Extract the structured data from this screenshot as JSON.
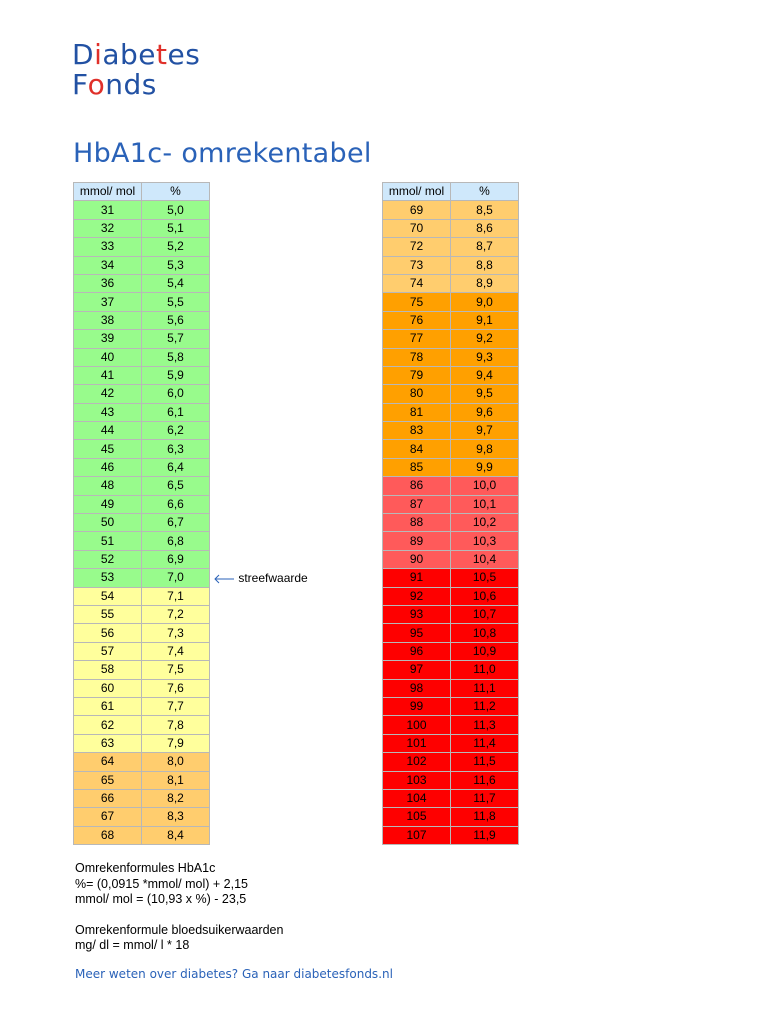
{
  "logo": {
    "line1": "Diabetes",
    "line2": "Fonds"
  },
  "title": "HbA1c- omrekentabel",
  "table": {
    "headers": [
      "mmol/ mol",
      "%"
    ],
    "left_rows": [
      {
        "mmol": "31",
        "pct": "5,0",
        "band": "g"
      },
      {
        "mmol": "32",
        "pct": "5,1",
        "band": "g"
      },
      {
        "mmol": "33",
        "pct": "5,2",
        "band": "g"
      },
      {
        "mmol": "34",
        "pct": "5,3",
        "band": "g"
      },
      {
        "mmol": "36",
        "pct": "5,4",
        "band": "g"
      },
      {
        "mmol": "37",
        "pct": "5,5",
        "band": "g"
      },
      {
        "mmol": "38",
        "pct": "5,6",
        "band": "g"
      },
      {
        "mmol": "39",
        "pct": "5,7",
        "band": "g"
      },
      {
        "mmol": "40",
        "pct": "5,8",
        "band": "g"
      },
      {
        "mmol": "41",
        "pct": "5,9",
        "band": "g"
      },
      {
        "mmol": "42",
        "pct": "6,0",
        "band": "g"
      },
      {
        "mmol": "43",
        "pct": "6,1",
        "band": "g"
      },
      {
        "mmol": "44",
        "pct": "6,2",
        "band": "g"
      },
      {
        "mmol": "45",
        "pct": "6,3",
        "band": "g"
      },
      {
        "mmol": "46",
        "pct": "6,4",
        "band": "g"
      },
      {
        "mmol": "48",
        "pct": "6,5",
        "band": "g"
      },
      {
        "mmol": "49",
        "pct": "6,6",
        "band": "g"
      },
      {
        "mmol": "50",
        "pct": "6,7",
        "band": "g"
      },
      {
        "mmol": "51",
        "pct": "6,8",
        "band": "g"
      },
      {
        "mmol": "52",
        "pct": "6,9",
        "band": "g"
      },
      {
        "mmol": "53",
        "pct": "7,0",
        "band": "g"
      },
      {
        "mmol": "54",
        "pct": "7,1",
        "band": "y"
      },
      {
        "mmol": "55",
        "pct": "7,2",
        "band": "y"
      },
      {
        "mmol": "56",
        "pct": "7,3",
        "band": "y"
      },
      {
        "mmol": "57",
        "pct": "7,4",
        "band": "y"
      },
      {
        "mmol": "58",
        "pct": "7,5",
        "band": "y"
      },
      {
        "mmol": "60",
        "pct": "7,6",
        "band": "y"
      },
      {
        "mmol": "61",
        "pct": "7,7",
        "band": "y"
      },
      {
        "mmol": "62",
        "pct": "7,8",
        "band": "y"
      },
      {
        "mmol": "63",
        "pct": "7,9",
        "band": "y"
      },
      {
        "mmol": "64",
        "pct": "8,0",
        "band": "o1"
      },
      {
        "mmol": "65",
        "pct": "8,1",
        "band": "o1"
      },
      {
        "mmol": "66",
        "pct": "8,2",
        "band": "o1"
      },
      {
        "mmol": "67",
        "pct": "8,3",
        "band": "o1"
      },
      {
        "mmol": "68",
        "pct": "8,4",
        "band": "o1"
      }
    ],
    "right_rows": [
      {
        "mmol": "69",
        "pct": "8,5",
        "band": "o1"
      },
      {
        "mmol": "70",
        "pct": "8,6",
        "band": "o1"
      },
      {
        "mmol": "72",
        "pct": "8,7",
        "band": "o1"
      },
      {
        "mmol": "73",
        "pct": "8,8",
        "band": "o1"
      },
      {
        "mmol": "74",
        "pct": "8,9",
        "band": "o1"
      },
      {
        "mmol": "75",
        "pct": "9,0",
        "band": "o2"
      },
      {
        "mmol": "76",
        "pct": "9,1",
        "band": "o2"
      },
      {
        "mmol": "77",
        "pct": "9,2",
        "band": "o2"
      },
      {
        "mmol": "78",
        "pct": "9,3",
        "band": "o2"
      },
      {
        "mmol": "79",
        "pct": "9,4",
        "band": "o2"
      },
      {
        "mmol": "80",
        "pct": "9,5",
        "band": "o2"
      },
      {
        "mmol": "81",
        "pct": "9,6",
        "band": "o2"
      },
      {
        "mmol": "83",
        "pct": "9,7",
        "band": "o2"
      },
      {
        "mmol": "84",
        "pct": "9,8",
        "band": "o2"
      },
      {
        "mmol": "85",
        "pct": "9,9",
        "band": "o2"
      },
      {
        "mmol": "86",
        "pct": "10,0",
        "band": "r1"
      },
      {
        "mmol": "87",
        "pct": "10,1",
        "band": "r1"
      },
      {
        "mmol": "88",
        "pct": "10,2",
        "band": "r1"
      },
      {
        "mmol": "89",
        "pct": "10,3",
        "band": "r1"
      },
      {
        "mmol": "90",
        "pct": "10,4",
        "band": "r1"
      },
      {
        "mmol": "91",
        "pct": "10,5",
        "band": "r2"
      },
      {
        "mmol": "92",
        "pct": "10,6",
        "band": "r2"
      },
      {
        "mmol": "93",
        "pct": "10,7",
        "band": "r2"
      },
      {
        "mmol": "95",
        "pct": "10,8",
        "band": "r2"
      },
      {
        "mmol": "96",
        "pct": "10,9",
        "band": "r2"
      },
      {
        "mmol": "97",
        "pct": "11,0",
        "band": "r2"
      },
      {
        "mmol": "98",
        "pct": "11,1",
        "band": "r2"
      },
      {
        "mmol": "99",
        "pct": "11,2",
        "band": "r2"
      },
      {
        "mmol": "100",
        "pct": "11,3",
        "band": "r2"
      },
      {
        "mmol": "101",
        "pct": "11,4",
        "band": "r2"
      },
      {
        "mmol": "102",
        "pct": "11,5",
        "band": "r2"
      },
      {
        "mmol": "103",
        "pct": "11,6",
        "band": "r2"
      },
      {
        "mmol": "104",
        "pct": "11,7",
        "band": "r2"
      },
      {
        "mmol": "105",
        "pct": "11,8",
        "band": "r2"
      },
      {
        "mmol": "107",
        "pct": "11,9",
        "band": "r2"
      }
    ]
  },
  "target_label": "streefwaarde",
  "formulas": {
    "hba1c_heading": "Omrekenformules HbA1c",
    "hba1c_pct": "%= (0,0915 *mmol/ mol) + 2,15",
    "hba1c_mmol": "mmol/ mol = (10,93 x %) - 23,5",
    "glucose_heading": "Omrekenformule bloedsuikerwaarden",
    "glucose_formula": "mg/ dl = mmol/ l * 18"
  },
  "footer": "Meer weten over diabetes? Ga naar diabetesfonds.nl",
  "colors": {
    "brand_blue": "#2251a3",
    "brand_red": "#e0302a",
    "header_blue": "#cfe8fb",
    "green": "#98fb8c",
    "yellow": "#ffff9c",
    "light_orange": "#ffcd6e",
    "orange": "#ffa000",
    "light_red": "#ff5a5a",
    "red": "#fe0000"
  }
}
